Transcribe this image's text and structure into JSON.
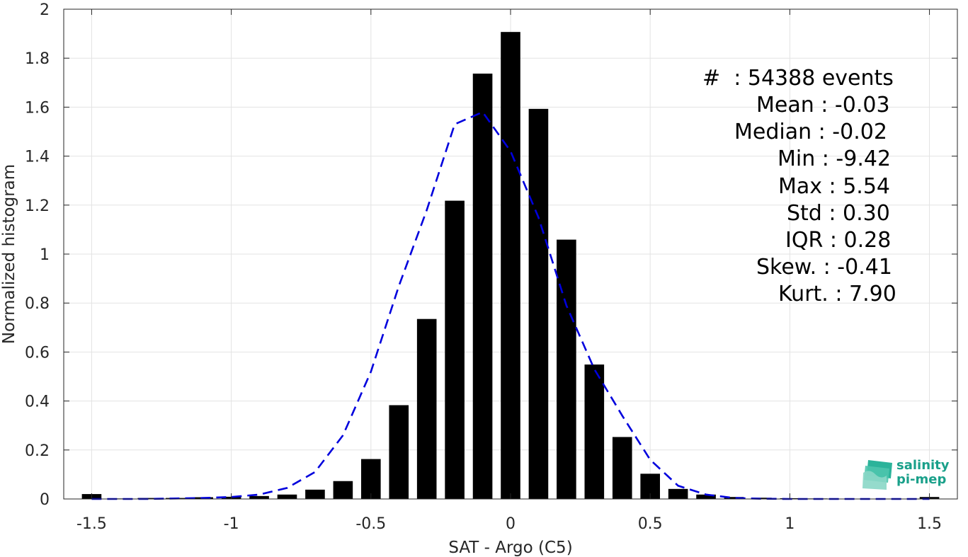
{
  "chart_data": {
    "type": "bar",
    "xlabel": "SAT - Argo (C5)",
    "ylabel": "Normalized histogram",
    "xlim": [
      -1.6,
      1.6
    ],
    "ylim": [
      0,
      2
    ],
    "xticks": [
      -1.5,
      -1,
      -0.5,
      0,
      0.5,
      1,
      1.5
    ],
    "xtick_labels": [
      "-1.5",
      "-1",
      "-0.5",
      "0",
      "0.5",
      "1",
      "1.5"
    ],
    "yticks": [
      0,
      0.2,
      0.4,
      0.6,
      0.8,
      1,
      1.2,
      1.4,
      1.6,
      1.8,
      2
    ],
    "ytick_labels": [
      "0",
      "0.2",
      "0.4",
      "0.6",
      "0.8",
      "1",
      "1.2",
      "1.4",
      "1.6",
      "1.8",
      "2"
    ],
    "grid": true,
    "bar_color": "#000000",
    "curve_color": "#0000dd",
    "bars": {
      "x": [
        -1.5,
        -1.4,
        -1.3,
        -1.2,
        -1.1,
        -1.0,
        -0.9,
        -0.8,
        -0.7,
        -0.6,
        -0.5,
        -0.4,
        -0.3,
        -0.2,
        -0.1,
        0.0,
        0.1,
        0.2,
        0.3,
        0.4,
        0.5,
        0.6,
        0.7,
        0.8,
        0.9,
        1.0,
        1.1,
        1.2,
        1.3,
        1.4,
        1.5
      ],
      "values": [
        0.02,
        0.002,
        0.004,
        0.004,
        0.007,
        0.009,
        0.012,
        0.018,
        0.038,
        0.073,
        0.163,
        0.383,
        0.735,
        1.218,
        1.737,
        1.907,
        1.593,
        1.059,
        0.549,
        0.253,
        0.103,
        0.041,
        0.018,
        0.008,
        0.005,
        0.003,
        0.002,
        0.001,
        0.001,
        0.001,
        0.008
      ],
      "width": 0.07
    },
    "series": [
      {
        "type": "line",
        "style": "dashed",
        "x": [
          -1.5,
          -1.4,
          -1.3,
          -1.2,
          -1.1,
          -1.0,
          -0.9,
          -0.8,
          -0.7,
          -0.6,
          -0.5,
          -0.4,
          -0.3,
          -0.2,
          -0.1,
          0.0,
          0.1,
          0.2,
          0.3,
          0.4,
          0.5,
          0.6,
          0.7,
          0.8,
          0.9,
          1.0,
          1.1,
          1.2,
          1.3,
          1.4,
          1.5
        ],
        "values": [
          0.0,
          0.0,
          0.0,
          0.002,
          0.004,
          0.008,
          0.018,
          0.045,
          0.11,
          0.26,
          0.52,
          0.87,
          1.18,
          1.53,
          1.58,
          1.42,
          1.15,
          0.79,
          0.53,
          0.34,
          0.16,
          0.054,
          0.018,
          0.004,
          0.001,
          0.0,
          0.0,
          0.0,
          0.0,
          0.0,
          0.0
        ]
      }
    ]
  },
  "stats": {
    "events": "#  : 54388 events",
    "mean": "Mean : -0.03",
    "median": "Median : -0.02",
    "min": "Min : -9.42",
    "max": "Max : 5.54",
    "std": "Std : 0.30",
    "iqr": "IQR : 0.28",
    "skew": "Skew. : -0.41",
    "kurt": "Kurt. : 7.90"
  },
  "logo": {
    "line1": "salinity",
    "line2": "pi-mep",
    "color": "#1aa08a"
  }
}
